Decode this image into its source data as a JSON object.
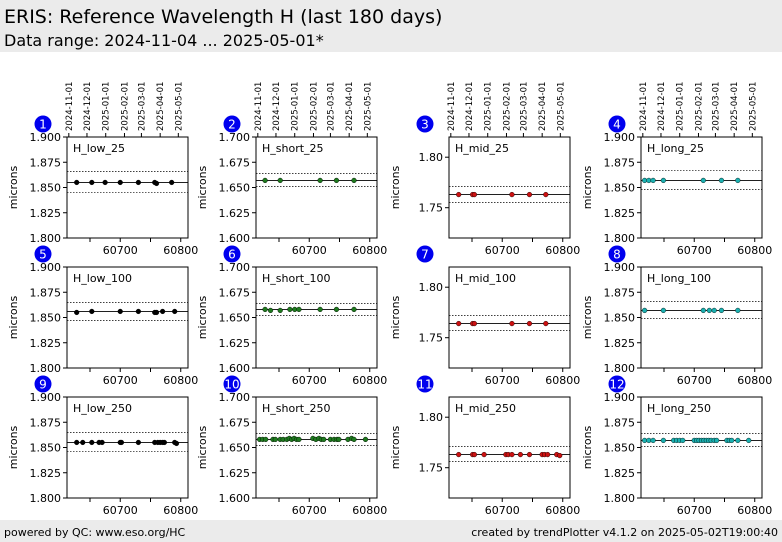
{
  "header": {
    "title": "ERIS: Reference Wavelength H (last 180 days)",
    "subtitle": "Data range: 2024-11-04 ... 2025-05-01*"
  },
  "footer": {
    "left": "powered by QC: www.eso.org/HC",
    "right": "created by trendPlotter v4.1.2 on 2025-05-02T19:00:40"
  },
  "colors": {
    "badge": "#0000ee",
    "low": "#000000",
    "short": "#1e7a1e",
    "mid": "#cc1111",
    "long": "#1ab0b0"
  },
  "chart_data": [
    {
      "type": "scatter",
      "panel": "1",
      "label": "H_low_25",
      "ylabel": "microns",
      "xlim": [
        60612,
        60812
      ],
      "ylim": [
        1.8,
        1.9
      ],
      "yticks": [
        "1.800",
        "1.825",
        "1.850",
        "1.875",
        "1.900"
      ],
      "xticks": [
        "",
        "",
        ""
      ],
      "dates": [
        "2024-11-01",
        "2024-12-01",
        "2025-01-01",
        "2025-02-01",
        "2025-03-01",
        "2025-04-01",
        "2025-05-01"
      ],
      "ref": 1.855,
      "band": [
        1.845,
        1.866
      ],
      "color": "low",
      "x": [
        60628,
        60653,
        60675,
        60700,
        60730,
        60757,
        60760,
        60785
      ],
      "y": [
        1.855,
        1.855,
        1.855,
        1.855,
        1.855,
        1.855,
        1.854,
        1.855
      ]
    },
    {
      "type": "scatter",
      "panel": "2",
      "label": "H_short_25",
      "ylabel": "microns",
      "xlim": [
        60612,
        60812
      ],
      "ylim": [
        1.6,
        1.7
      ],
      "yticks": [
        "1.600",
        "1.625",
        "1.650",
        "1.675",
        "1.700"
      ],
      "xticks": [
        "",
        "",
        ""
      ],
      "dates": [
        "2024-11-01",
        "2024-12-01",
        "2025-01-01",
        "2025-02-01",
        "2025-03-01",
        "2025-04-01",
        "2025-05-01"
      ],
      "ref": 1.657,
      "band": [
        1.651,
        1.664
      ],
      "color": "short",
      "x": [
        60627,
        60652,
        60718,
        60745,
        60774
      ],
      "y": [
        1.657,
        1.657,
        1.657,
        1.657,
        1.657
      ]
    },
    {
      "type": "scatter",
      "panel": "3",
      "label": "H_mid_25",
      "ylabel": "microns",
      "xlim": [
        60612,
        60812
      ],
      "ylim": [
        1.72,
        1.82
      ],
      "yticks": [
        "1.75",
        "1.80"
      ],
      "xticks": [
        "60700",
        "60800"
      ],
      "dates": [
        "2024-11-01",
        "2024-12-01",
        "2025-01-01",
        "2025-02-01",
        "2025-03-01",
        "2025-04-01",
        "2025-05-01"
      ],
      "ref": 1.763,
      "band": [
        1.755,
        1.771
      ],
      "color": "mid",
      "x": [
        60628,
        60651,
        60654,
        60716,
        60745,
        60772
      ],
      "y": [
        1.763,
        1.763,
        1.763,
        1.763,
        1.763,
        1.763
      ]
    },
    {
      "type": "scatter",
      "panel": "4",
      "label": "H_long_25",
      "ylabel": "microns",
      "xlim": [
        60612,
        60812
      ],
      "ylim": [
        1.8,
        1.9
      ],
      "yticks": [
        "1.800",
        "1.825",
        "1.850",
        "1.875",
        "1.900"
      ],
      "xticks": [
        "60700",
        "60800"
      ],
      "dates": [
        "2024-11-01",
        "2024-12-01",
        "2025-01-01",
        "2025-02-01",
        "2025-03-01",
        "2025-04-01",
        "2025-05-01"
      ],
      "ref": 1.857,
      "band": [
        1.848,
        1.867
      ],
      "color": "long",
      "x": [
        60618,
        60625,
        60632,
        60649,
        60715,
        60745,
        60772
      ],
      "y": [
        1.857,
        1.857,
        1.857,
        1.857,
        1.857,
        1.857,
        1.857
      ]
    },
    {
      "type": "scatter",
      "panel": "5",
      "label": "H_low_100",
      "ylabel": "microns",
      "xlim": [
        60612,
        60812
      ],
      "ylim": [
        1.8,
        1.9
      ],
      "yticks": [
        "1.800",
        "1.825",
        "1.850",
        "1.875",
        "1.900"
      ],
      "xticks": [
        "",
        "",
        ""
      ],
      "dates": [],
      "ref": 1.856,
      "band": [
        1.847,
        1.865
      ],
      "color": "low",
      "x": [
        60628,
        60653,
        60700,
        60730,
        60757,
        60760,
        60770,
        60790
      ],
      "y": [
        1.855,
        1.856,
        1.856,
        1.856,
        1.855,
        1.855,
        1.856,
        1.856
      ]
    },
    {
      "type": "scatter",
      "panel": "6",
      "label": "H_short_100",
      "ylabel": "microns",
      "xlim": [
        60612,
        60812
      ],
      "ylim": [
        1.6,
        1.7
      ],
      "yticks": [
        "1.600",
        "1.625",
        "1.650",
        "1.675",
        "1.700"
      ],
      "xticks": [
        "",
        "",
        ""
      ],
      "dates": [],
      "ref": 1.658,
      "band": [
        1.652,
        1.664
      ],
      "color": "short",
      "x": [
        60627,
        60636,
        60652,
        60668,
        60676,
        60683,
        60718,
        60745,
        60774
      ],
      "y": [
        1.658,
        1.657,
        1.657,
        1.658,
        1.658,
        1.658,
        1.658,
        1.658,
        1.658
      ]
    },
    {
      "type": "scatter",
      "panel": "7",
      "label": "H_mid_100",
      "ylabel": "microns",
      "xlim": [
        60612,
        60812
      ],
      "ylim": [
        1.72,
        1.82
      ],
      "yticks": [
        "1.75",
        "1.80"
      ],
      "xticks": [
        "60700",
        "60800"
      ],
      "dates": [],
      "ref": 1.764,
      "band": [
        1.757,
        1.772
      ],
      "color": "mid",
      "x": [
        60628,
        60651,
        60654,
        60716,
        60745,
        60772
      ],
      "y": [
        1.764,
        1.764,
        1.764,
        1.764,
        1.764,
        1.764
      ]
    },
    {
      "type": "scatter",
      "panel": "8",
      "label": "H_long_100",
      "ylabel": "microns",
      "xlim": [
        60612,
        60812
      ],
      "ylim": [
        1.8,
        1.9
      ],
      "yticks": [
        "1.800",
        "1.825",
        "1.850",
        "1.875",
        "1.900"
      ],
      "xticks": [
        "60700",
        "60800"
      ],
      "dates": [],
      "ref": 1.857,
      "band": [
        1.849,
        1.866
      ],
      "color": "long",
      "x": [
        60618,
        60649,
        60715,
        60725,
        60733,
        60745,
        60772
      ],
      "y": [
        1.857,
        1.857,
        1.857,
        1.857,
        1.857,
        1.857,
        1.857
      ]
    },
    {
      "type": "scatter",
      "panel": "9",
      "label": "H_low_250",
      "ylabel": "microns",
      "xlim": [
        60612,
        60812
      ],
      "ylim": [
        1.8,
        1.9
      ],
      "yticks": [
        "1.800",
        "1.825",
        "1.850",
        "1.875",
        "1.900"
      ],
      "xticks": [
        "60700",
        "60800"
      ],
      "dates": [],
      "ref": 1.855,
      "band": [
        1.846,
        1.865
      ],
      "color": "low",
      "x": [
        60628,
        60638,
        60653,
        60665,
        60670,
        60700,
        60702,
        60730,
        60757,
        60762,
        60766,
        60770,
        60773,
        60790,
        60793
      ],
      "y": [
        1.855,
        1.855,
        1.855,
        1.855,
        1.855,
        1.855,
        1.855,
        1.855,
        1.855,
        1.855,
        1.855,
        1.855,
        1.855,
        1.855,
        1.854
      ]
    },
    {
      "type": "scatter",
      "panel": "10",
      "label": "H_short_250",
      "ylabel": "microns",
      "xlim": [
        60612,
        60812
      ],
      "ylim": [
        1.6,
        1.7
      ],
      "yticks": [
        "1.600",
        "1.625",
        "1.650",
        "1.675",
        "1.700"
      ],
      "xticks": [
        "60700",
        "60800"
      ],
      "dates": [],
      "ref": 1.658,
      "band": [
        1.652,
        1.664
      ],
      "color": "short",
      "x": [
        60618,
        60623,
        60628,
        60640,
        60644,
        60652,
        60657,
        60663,
        60667,
        60671,
        60675,
        60679,
        60683,
        60706,
        60711,
        60716,
        60720,
        60724,
        60735,
        60741,
        60746,
        60749,
        60764,
        60770,
        60774,
        60793
      ],
      "y": [
        1.658,
        1.658,
        1.658,
        1.658,
        1.658,
        1.658,
        1.658,
        1.658,
        1.659,
        1.658,
        1.659,
        1.658,
        1.658,
        1.659,
        1.658,
        1.659,
        1.658,
        1.658,
        1.658,
        1.658,
        1.658,
        1.658,
        1.658,
        1.659,
        1.658,
        1.658
      ]
    },
    {
      "type": "scatter",
      "panel": "11",
      "label": "H_mid_250",
      "ylabel": "microns",
      "xlim": [
        60612,
        60812
      ],
      "ylim": [
        1.72,
        1.82
      ],
      "yticks": [
        "1.75",
        "1.80"
      ],
      "xticks": [
        "60700",
        "60800"
      ],
      "dates": [],
      "ref": 1.763,
      "band": [
        1.756,
        1.771
      ],
      "color": "mid",
      "x": [
        60628,
        60651,
        60654,
        60670,
        60706,
        60710,
        60716,
        60730,
        60745,
        60766,
        60770,
        60775,
        60790,
        60795
      ],
      "y": [
        1.763,
        1.763,
        1.763,
        1.763,
        1.763,
        1.763,
        1.763,
        1.763,
        1.763,
        1.763,
        1.763,
        1.763,
        1.763,
        1.762
      ]
    },
    {
      "type": "scatter",
      "panel": "12",
      "label": "H_long_250",
      "ylabel": "microns",
      "xlim": [
        60612,
        60812
      ],
      "ylim": [
        1.8,
        1.9
      ],
      "yticks": [
        "1.800",
        "1.825",
        "1.850",
        "1.875",
        "1.900"
      ],
      "xticks": [
        "60700",
        "60800"
      ],
      "dates": [],
      "ref": 1.857,
      "band": [
        1.851,
        1.864
      ],
      "color": "long",
      "x": [
        60618,
        60625,
        60632,
        60649,
        60666,
        60671,
        60676,
        60681,
        60700,
        60704,
        60708,
        60712,
        60716,
        60720,
        60724,
        60728,
        60733,
        60737,
        60754,
        60758,
        60762,
        60772,
        60790
      ],
      "y": [
        1.857,
        1.857,
        1.857,
        1.857,
        1.857,
        1.857,
        1.857,
        1.857,
        1.857,
        1.857,
        1.857,
        1.857,
        1.857,
        1.857,
        1.857,
        1.857,
        1.857,
        1.857,
        1.857,
        1.857,
        1.857,
        1.857,
        1.857
      ]
    }
  ]
}
